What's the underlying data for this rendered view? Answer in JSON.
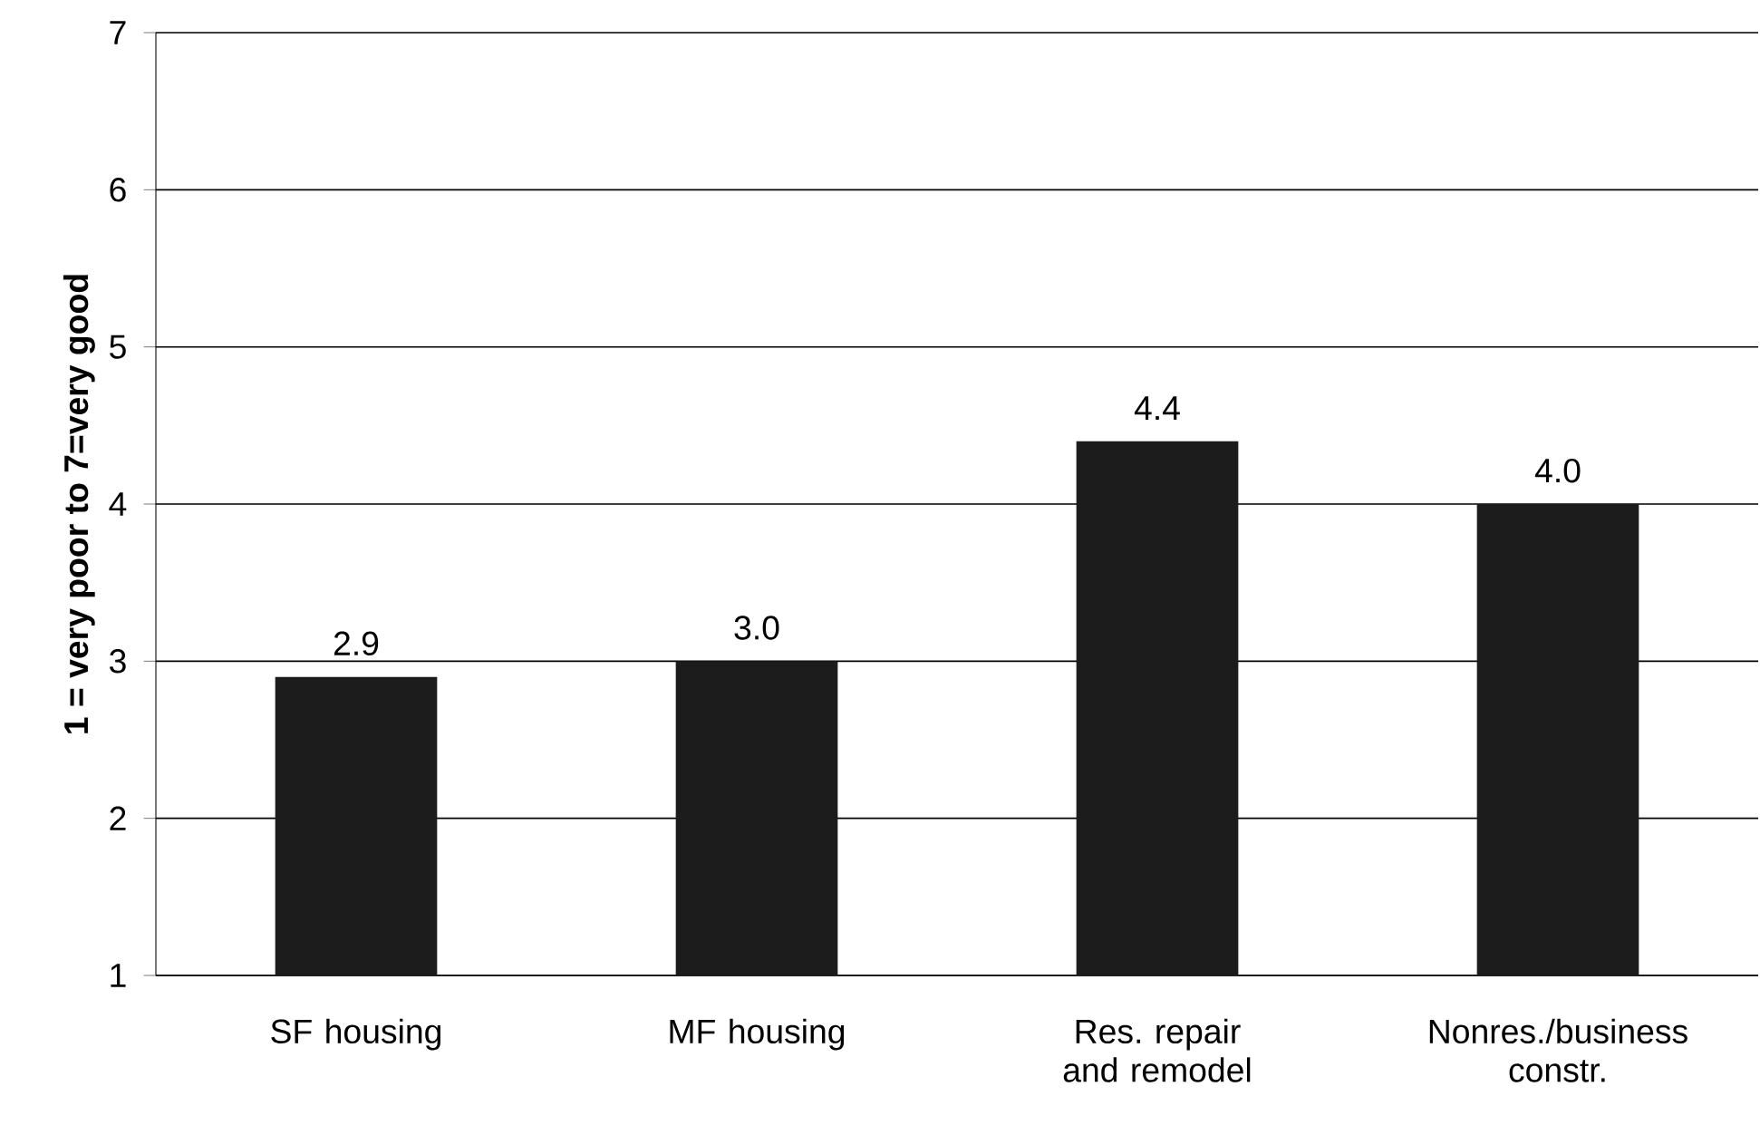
{
  "chart_data": {
    "type": "bar",
    "ylabel": "1 = very poor to 7=very good",
    "categories": [
      "SF housing",
      "MF housing",
      "Res. repair and remodel",
      "Nonres./business constr."
    ],
    "values": [
      2.9,
      3.0,
      4.4,
      4.0
    ],
    "color": "#1c1c1c",
    "ylim": [
      1,
      7
    ],
    "yticks": [
      1,
      2,
      3,
      4,
      5,
      6,
      7
    ],
    "grid": "y",
    "value_labels": [
      "2.9",
      "3.0",
      "4.4",
      "4.0"
    ]
  }
}
